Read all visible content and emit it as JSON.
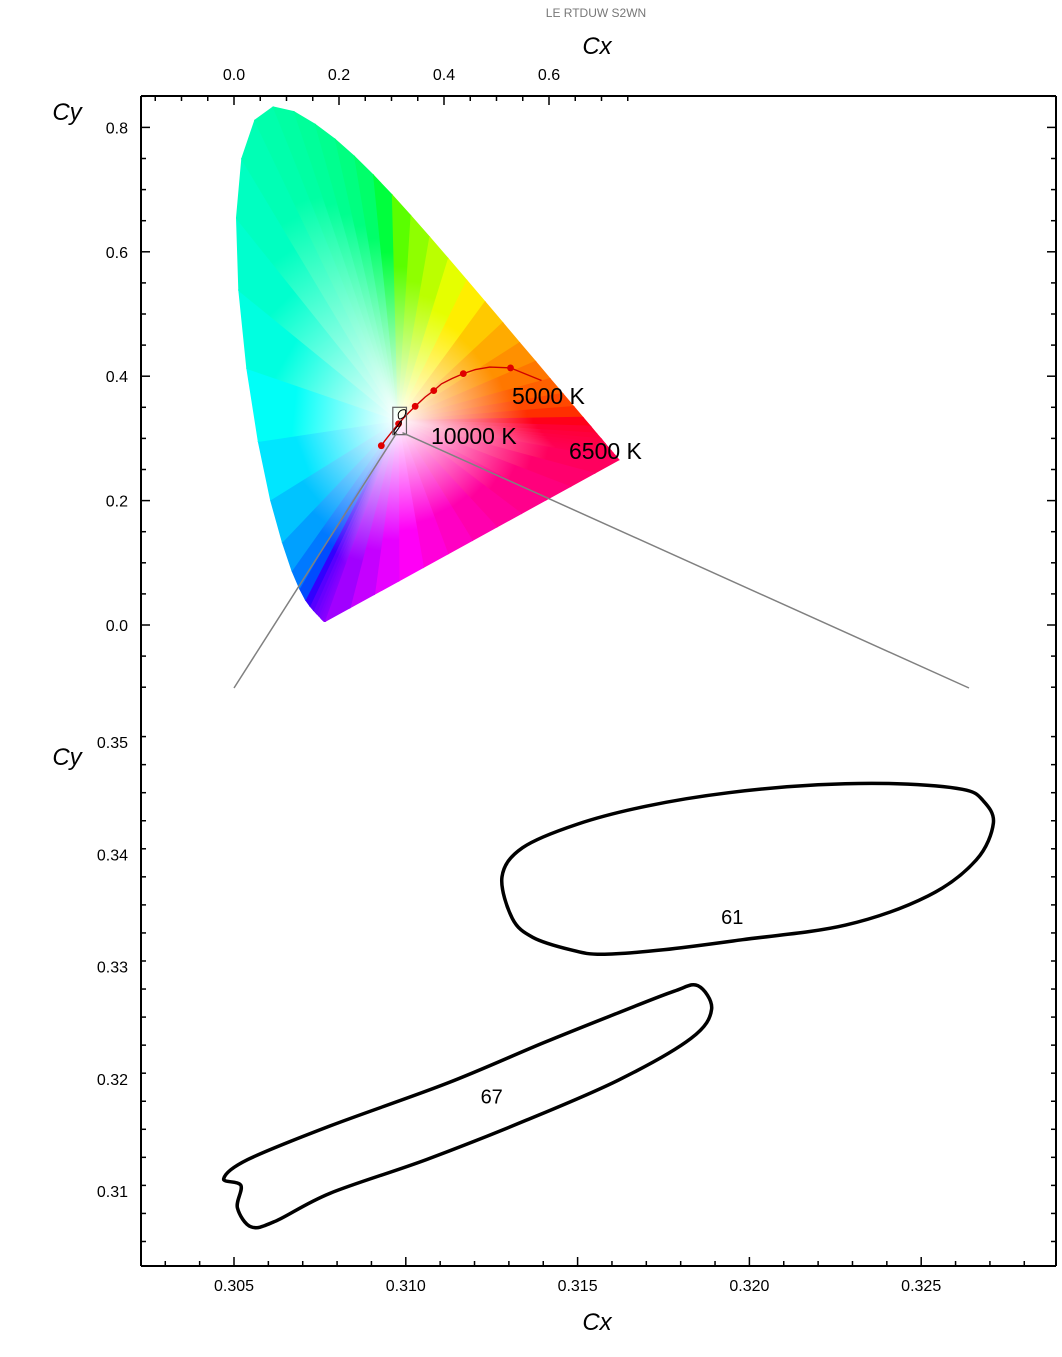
{
  "header": {
    "title": "LE RTDUW S2WN"
  },
  "chart_data": [
    {
      "type": "scatter",
      "kind": "CIE 1931 chromaticity diagram",
      "xlabel": "Cx",
      "ylabel": "Cy",
      "xlim": [
        -0.1,
        0.73
      ],
      "ylim": [
        -0.05,
        0.85
      ],
      "x_ticks": [
        "0.0",
        "0.2",
        "0.4",
        "0.6"
      ],
      "y_ticks": [
        "0.0",
        "0.2",
        "0.4",
        "0.6",
        "0.8"
      ],
      "spectral_locus": [
        [
          0.1741,
          0.005
        ],
        [
          0.1738,
          0.0049
        ],
        [
          0.1736,
          0.0049
        ],
        [
          0.1733,
          0.0048
        ],
        [
          0.173,
          0.0048
        ],
        [
          0.1726,
          0.0048
        ],
        [
          0.1721,
          0.0048
        ],
        [
          0.1714,
          0.0051
        ],
        [
          0.1703,
          0.0058
        ],
        [
          0.1689,
          0.0069
        ],
        [
          0.1669,
          0.0086
        ],
        [
          0.1644,
          0.0109
        ],
        [
          0.1611,
          0.0138
        ],
        [
          0.1566,
          0.0177
        ],
        [
          0.151,
          0.0227
        ],
        [
          0.144,
          0.0297
        ],
        [
          0.1355,
          0.0399
        ],
        [
          0.1241,
          0.0578
        ],
        [
          0.1096,
          0.0868
        ],
        [
          0.0913,
          0.1327
        ],
        [
          0.0687,
          0.2007
        ],
        [
          0.0454,
          0.295
        ],
        [
          0.0235,
          0.4127
        ],
        [
          0.0082,
          0.5384
        ],
        [
          0.0039,
          0.6548
        ],
        [
          0.0139,
          0.7502
        ],
        [
          0.0389,
          0.812
        ],
        [
          0.0743,
          0.8338
        ],
        [
          0.1142,
          0.8262
        ],
        [
          0.1547,
          0.8059
        ],
        [
          0.1929,
          0.7816
        ],
        [
          0.2296,
          0.7543
        ],
        [
          0.2658,
          0.7243
        ],
        [
          0.3016,
          0.6923
        ],
        [
          0.3373,
          0.6589
        ],
        [
          0.3731,
          0.6245
        ],
        [
          0.4087,
          0.5896
        ],
        [
          0.4441,
          0.5547
        ],
        [
          0.4788,
          0.5202
        ],
        [
          0.5125,
          0.4866
        ],
        [
          0.5448,
          0.4544
        ],
        [
          0.5752,
          0.4242
        ],
        [
          0.6029,
          0.3965
        ],
        [
          0.627,
          0.3725
        ],
        [
          0.6482,
          0.3514
        ],
        [
          0.6658,
          0.334
        ],
        [
          0.6801,
          0.3197
        ],
        [
          0.6915,
          0.3083
        ],
        [
          0.7006,
          0.2993
        ],
        [
          0.7079,
          0.292
        ],
        [
          0.714,
          0.2859
        ],
        [
          0.719,
          0.2809
        ],
        [
          0.723,
          0.277
        ],
        [
          0.726,
          0.274
        ],
        [
          0.7283,
          0.2717
        ],
        [
          0.73,
          0.27
        ],
        [
          0.7347,
          0.2653
        ]
      ],
      "planckian_locus": [
        [
          0.5857,
          0.3931
        ],
        [
          0.5267,
          0.4133
        ],
        [
          0.4873,
          0.4147
        ],
        [
          0.4599,
          0.4106
        ],
        [
          0.4368,
          0.4041
        ],
        [
          0.4155,
          0.3963
        ],
        [
          0.3951,
          0.3876
        ],
        [
          0.3805,
          0.3768
        ],
        [
          0.3641,
          0.3666
        ],
        [
          0.3451,
          0.3516
        ],
        [
          0.3324,
          0.341
        ],
        [
          0.3221,
          0.3318
        ],
        [
          0.3135,
          0.3236
        ],
        [
          0.3064,
          0.3165
        ],
        [
          0.2952,
          0.3048
        ],
        [
          0.2869,
          0.2956
        ],
        [
          0.2806,
          0.2883
        ]
      ],
      "planckian_markers": [
        [
          0.5267,
          0.4133
        ],
        [
          0.4368,
          0.4041
        ],
        [
          0.3805,
          0.3768
        ],
        [
          0.3451,
          0.3516
        ],
        [
          0.3135,
          0.3236
        ],
        [
          0.2806,
          0.2883
        ]
      ],
      "annotations": [
        {
          "text": "5000 K",
          "x": 0.345,
          "y": 0.352
        },
        {
          "text": "10000 K",
          "x": 0.281,
          "y": 0.289
        },
        {
          "text": "6500 K",
          "x": 0.313,
          "y": 0.324
        }
      ],
      "zoom_box": {
        "x": [
          0.3025,
          0.3285
        ],
        "y": [
          0.306,
          0.35
        ]
      }
    },
    {
      "type": "line",
      "kind": "chromaticity ellipses (zoom)",
      "xlabel": "Cx",
      "ylabel": "Cy",
      "xlim": [
        0.3025,
        0.3285
      ],
      "ylim": [
        0.3035,
        0.3525
      ],
      "x_ticks": [
        "0.305",
        "0.310",
        "0.315",
        "0.320",
        "0.325"
      ],
      "y_ticks": [
        "0.31",
        "0.32",
        "0.33",
        "0.34",
        "0.35"
      ],
      "series": [
        {
          "name": "61",
          "label_x": 0.3195,
          "label_y": 0.3345,
          "points": [
            [
              0.3268,
              0.3448
            ],
            [
              0.3262,
              0.3458
            ],
            [
              0.3243,
              0.3463
            ],
            [
              0.322,
              0.3462
            ],
            [
              0.3194,
              0.3455
            ],
            [
              0.317,
              0.3443
            ],
            [
              0.315,
              0.3427
            ],
            [
              0.3134,
              0.3406
            ],
            [
              0.3128,
              0.338
            ],
            [
              0.3131,
              0.3343
            ],
            [
              0.3137,
              0.3326
            ],
            [
              0.3148,
              0.3315
            ],
            [
              0.3157,
              0.3311
            ],
            [
              0.3175,
              0.3315
            ],
            [
              0.3198,
              0.3324
            ],
            [
              0.3228,
              0.3337
            ],
            [
              0.3252,
              0.3363
            ],
            [
              0.3266,
              0.3395
            ],
            [
              0.3271,
              0.3428
            ]
          ]
        },
        {
          "name": "67",
          "label_x": 0.3125,
          "label_y": 0.3185,
          "points": [
            [
              0.3052,
              0.3105
            ],
            [
              0.3047,
              0.3111
            ],
            [
              0.3054,
              0.3128
            ],
            [
              0.3078,
              0.3158
            ],
            [
              0.3112,
              0.3196
            ],
            [
              0.314,
              0.3232
            ],
            [
              0.3162,
              0.3259
            ],
            [
              0.3178,
              0.3278
            ],
            [
              0.3185,
              0.3283
            ],
            [
              0.3189,
              0.3262
            ],
            [
              0.3183,
              0.3236
            ],
            [
              0.3162,
              0.3199
            ],
            [
              0.3135,
              0.3163
            ],
            [
              0.3106,
              0.3128
            ],
            [
              0.3078,
              0.3098
            ],
            [
              0.3062,
              0.3073
            ],
            [
              0.3055,
              0.3068
            ],
            [
              0.3051,
              0.3085
            ]
          ]
        }
      ]
    }
  ]
}
